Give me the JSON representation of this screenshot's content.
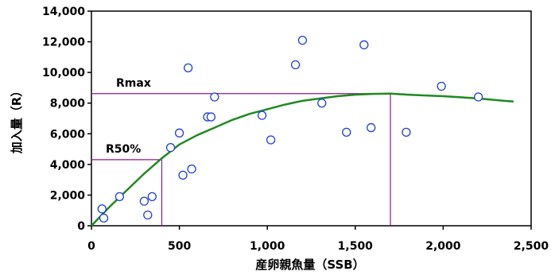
{
  "chart_data": {
    "type": "scatter",
    "xlabel": "産卵親魚量（SSB）",
    "ylabel": "加入量（R）",
    "xlim": [
      0,
      2500
    ],
    "ylim": [
      0,
      14000
    ],
    "xticks": [
      0,
      500,
      1000,
      1500,
      2000,
      2500
    ],
    "yticks": [
      0,
      2000,
      4000,
      6000,
      8000,
      10000,
      12000,
      14000
    ],
    "xtick_labels": [
      "0",
      "500",
      "1,000",
      "1,500",
      "2,000",
      "2,500"
    ],
    "ytick_labels": [
      "0",
      "2,000",
      "4,000",
      "6,000",
      "8,000",
      "10,000",
      "12,000",
      "14,000"
    ],
    "grid": false,
    "points": [
      {
        "x": 60,
        "y": 1100
      },
      {
        "x": 70,
        "y": 500
      },
      {
        "x": 160,
        "y": 1900
      },
      {
        "x": 300,
        "y": 1600
      },
      {
        "x": 320,
        "y": 700
      },
      {
        "x": 345,
        "y": 1900
      },
      {
        "x": 450,
        "y": 5100
      },
      {
        "x": 500,
        "y": 6050
      },
      {
        "x": 520,
        "y": 3300
      },
      {
        "x": 550,
        "y": 10300
      },
      {
        "x": 570,
        "y": 3700
      },
      {
        "x": 660,
        "y": 7100
      },
      {
        "x": 680,
        "y": 7100
      },
      {
        "x": 700,
        "y": 8400
      },
      {
        "x": 970,
        "y": 7200
      },
      {
        "x": 1020,
        "y": 5600
      },
      {
        "x": 1160,
        "y": 10500
      },
      {
        "x": 1200,
        "y": 12100
      },
      {
        "x": 1310,
        "y": 8000
      },
      {
        "x": 1450,
        "y": 6100
      },
      {
        "x": 1550,
        "y": 11800
      },
      {
        "x": 1590,
        "y": 6400
      },
      {
        "x": 1790,
        "y": 6100
      },
      {
        "x": 1990,
        "y": 9100
      },
      {
        "x": 2200,
        "y": 8400
      }
    ],
    "curve": {
      "x": [
        0,
        100,
        200,
        300,
        400,
        500,
        600,
        700,
        800,
        900,
        1000,
        1100,
        1200,
        1300,
        1400,
        1500,
        1600,
        1700,
        1800,
        1900,
        2000,
        2100,
        2200,
        2300,
        2400
      ],
      "y": [
        0,
        1200,
        2300,
        3400,
        4400,
        5300,
        5900,
        6400,
        6900,
        7300,
        7600,
        7900,
        8150,
        8300,
        8450,
        8550,
        8600,
        8620,
        8550,
        8500,
        8450,
        8380,
        8300,
        8200,
        8100
      ],
      "color": "#1e8a1e"
    },
    "reference_lines": {
      "color": "#8b1a8b",
      "rmax": {
        "label": "Rmax",
        "y": 8620,
        "x": 1700
      },
      "r50": {
        "label": "R50%",
        "y": 4310,
        "x": 400
      }
    }
  }
}
